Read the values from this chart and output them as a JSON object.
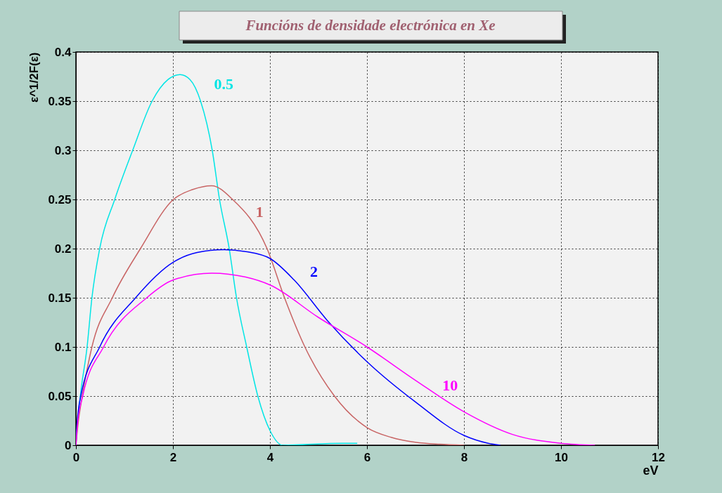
{
  "chart_data": {
    "type": "line",
    "title": "Funcións de densidade electrónica en Xe",
    "xlabel": "eV",
    "ylabel": "ε^1/2F(ε)",
    "xlim": [
      0,
      12
    ],
    "ylim": [
      0,
      0.4
    ],
    "xticks": [
      0,
      2,
      4,
      6,
      8,
      10,
      12
    ],
    "yticks": [
      0,
      0.05,
      0.1,
      0.15,
      0.2,
      0.25,
      0.3,
      0.35,
      0.4
    ],
    "grid": true,
    "legend": false,
    "marker": "none",
    "line_style": "solid",
    "series": [
      {
        "name": "0.5",
        "color": "#00e5e5",
        "x": [
          0,
          0.03,
          0.09,
          0.23,
          0.33,
          0.49,
          0.8,
          1.17,
          1.57,
          1.9,
          2.15,
          2.35,
          2.57,
          2.81,
          2.96,
          3.16,
          3.31,
          3.52,
          3.75,
          4.0,
          4.26,
          5.5,
          5.8
        ],
        "values": [
          0,
          0.02,
          0.05,
          0.1,
          0.15,
          0.2,
          0.25,
          0.3,
          0.35,
          0.372,
          0.377,
          0.372,
          0.35,
          0.3,
          0.25,
          0.2,
          0.15,
          0.1,
          0.05,
          0.015,
          0,
          0.002,
          0.002
        ]
      },
      {
        "name": "1",
        "color": "#c86464",
        "x": [
          0,
          0.04,
          0.13,
          0.33,
          0.75,
          1.33,
          2.01,
          2.4,
          2.8,
          3.23,
          3.94,
          4.3,
          4.72,
          5.33,
          6.0,
          6.5,
          7.0,
          7.5,
          8.0
        ],
        "values": [
          0,
          0.02,
          0.05,
          0.1,
          0.15,
          0.2,
          0.25,
          0.26,
          0.264,
          0.25,
          0.2,
          0.15,
          0.1,
          0.05,
          0.018,
          0.008,
          0.003,
          0.001,
          0
        ]
      },
      {
        "name": "2",
        "color": "#0000ff",
        "x": [
          0,
          0.02,
          0.1,
          0.49,
          1.23,
          2.0,
          2.5,
          3.05,
          3.5,
          4.0,
          4.5,
          5.18,
          6.0,
          7.0,
          8.0,
          8.5,
          8.75
        ],
        "values": [
          0,
          0.02,
          0.05,
          0.1,
          0.15,
          0.186,
          0.196,
          0.199,
          0.197,
          0.19,
          0.168,
          0.127,
          0.085,
          0.044,
          0.01,
          0.002,
          0
        ]
      },
      {
        "name": "10",
        "color": "#ff00ff",
        "x": [
          0,
          0.03,
          0.14,
          0.57,
          1.46,
          2.0,
          2.8,
          3.5,
          4.0,
          5.0,
          6.0,
          7.0,
          8.0,
          9.0,
          10.0,
          10.7
        ],
        "values": [
          0,
          0.02,
          0.05,
          0.1,
          0.15,
          0.168,
          0.175,
          0.171,
          0.163,
          0.13,
          0.1,
          0.066,
          0.034,
          0.011,
          0.002,
          0
        ]
      }
    ]
  }
}
